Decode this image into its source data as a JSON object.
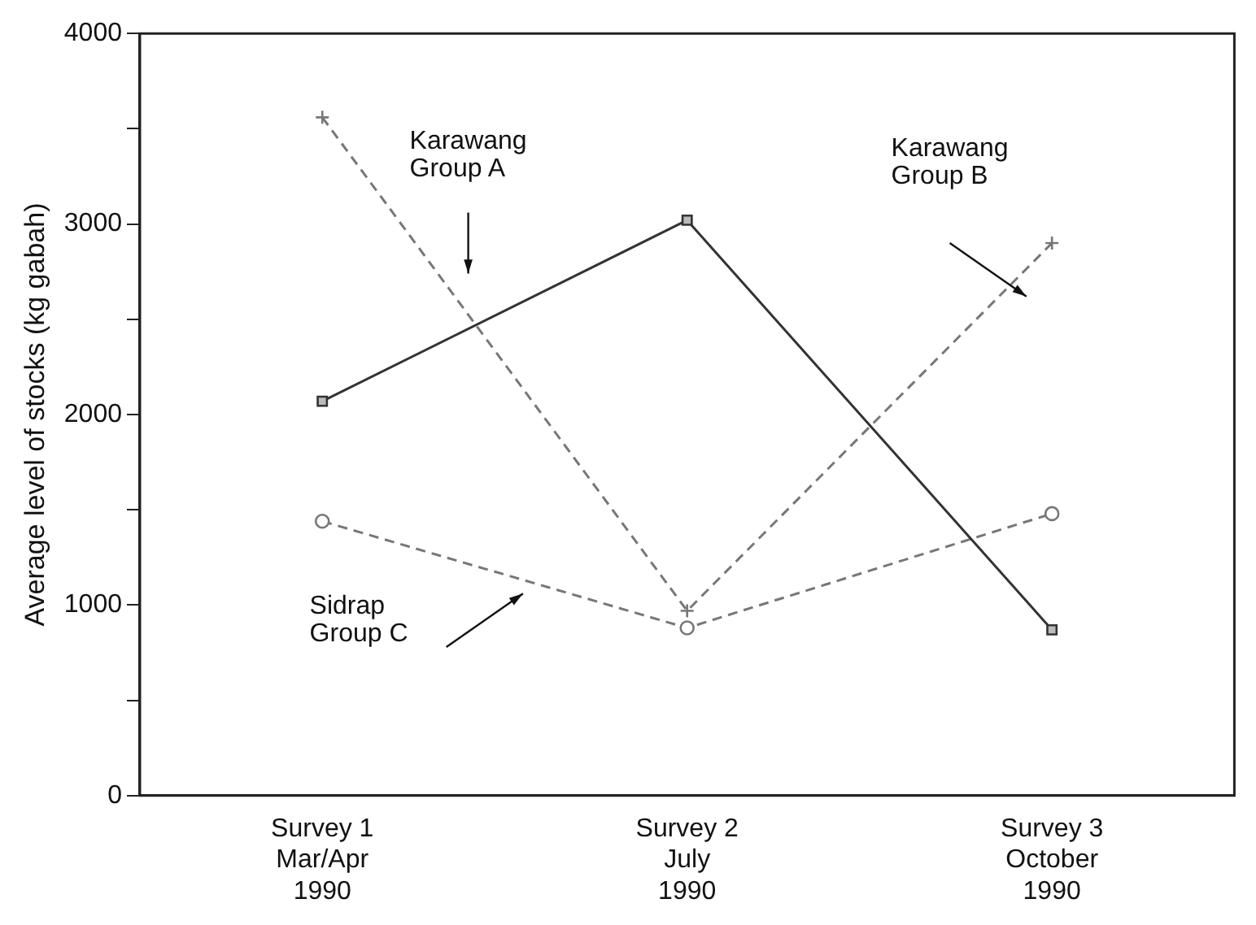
{
  "chart_data": {
    "type": "line",
    "ylabel": "Average level of stocks (kg gabah)",
    "categories": [
      "Survey 1\nMar/Apr\n1990",
      "Survey 2\nJuly\n1990",
      "Survey 3\nOctober\n1990"
    ],
    "series": [
      {
        "name": "Karawang\nGroup A",
        "color": "#333333",
        "values": [
          2070,
          3020,
          870
        ],
        "marker": "square",
        "line_style": "solid"
      },
      {
        "name": "Karawang\nGroup B",
        "color": "#777777",
        "values": [
          3560,
          970,
          2900
        ],
        "marker": "cross",
        "line_style": "dashed"
      },
      {
        "name": "Sidrap\nGroup C",
        "color": "#777777",
        "values": [
          1440,
          880,
          1480
        ],
        "marker": "circle",
        "line_style": "dashed"
      }
    ],
    "ylim": [
      0,
      4000
    ],
    "yticks": [
      0,
      {
        "value": 500,
        "label": null
      },
      1000,
      {
        "value": 1500,
        "label": null
      },
      2000,
      {
        "value": 2500,
        "label": null
      },
      3000,
      {
        "value": 3500,
        "label": null
      },
      4000
    ],
    "grid": false,
    "legend": false
  }
}
